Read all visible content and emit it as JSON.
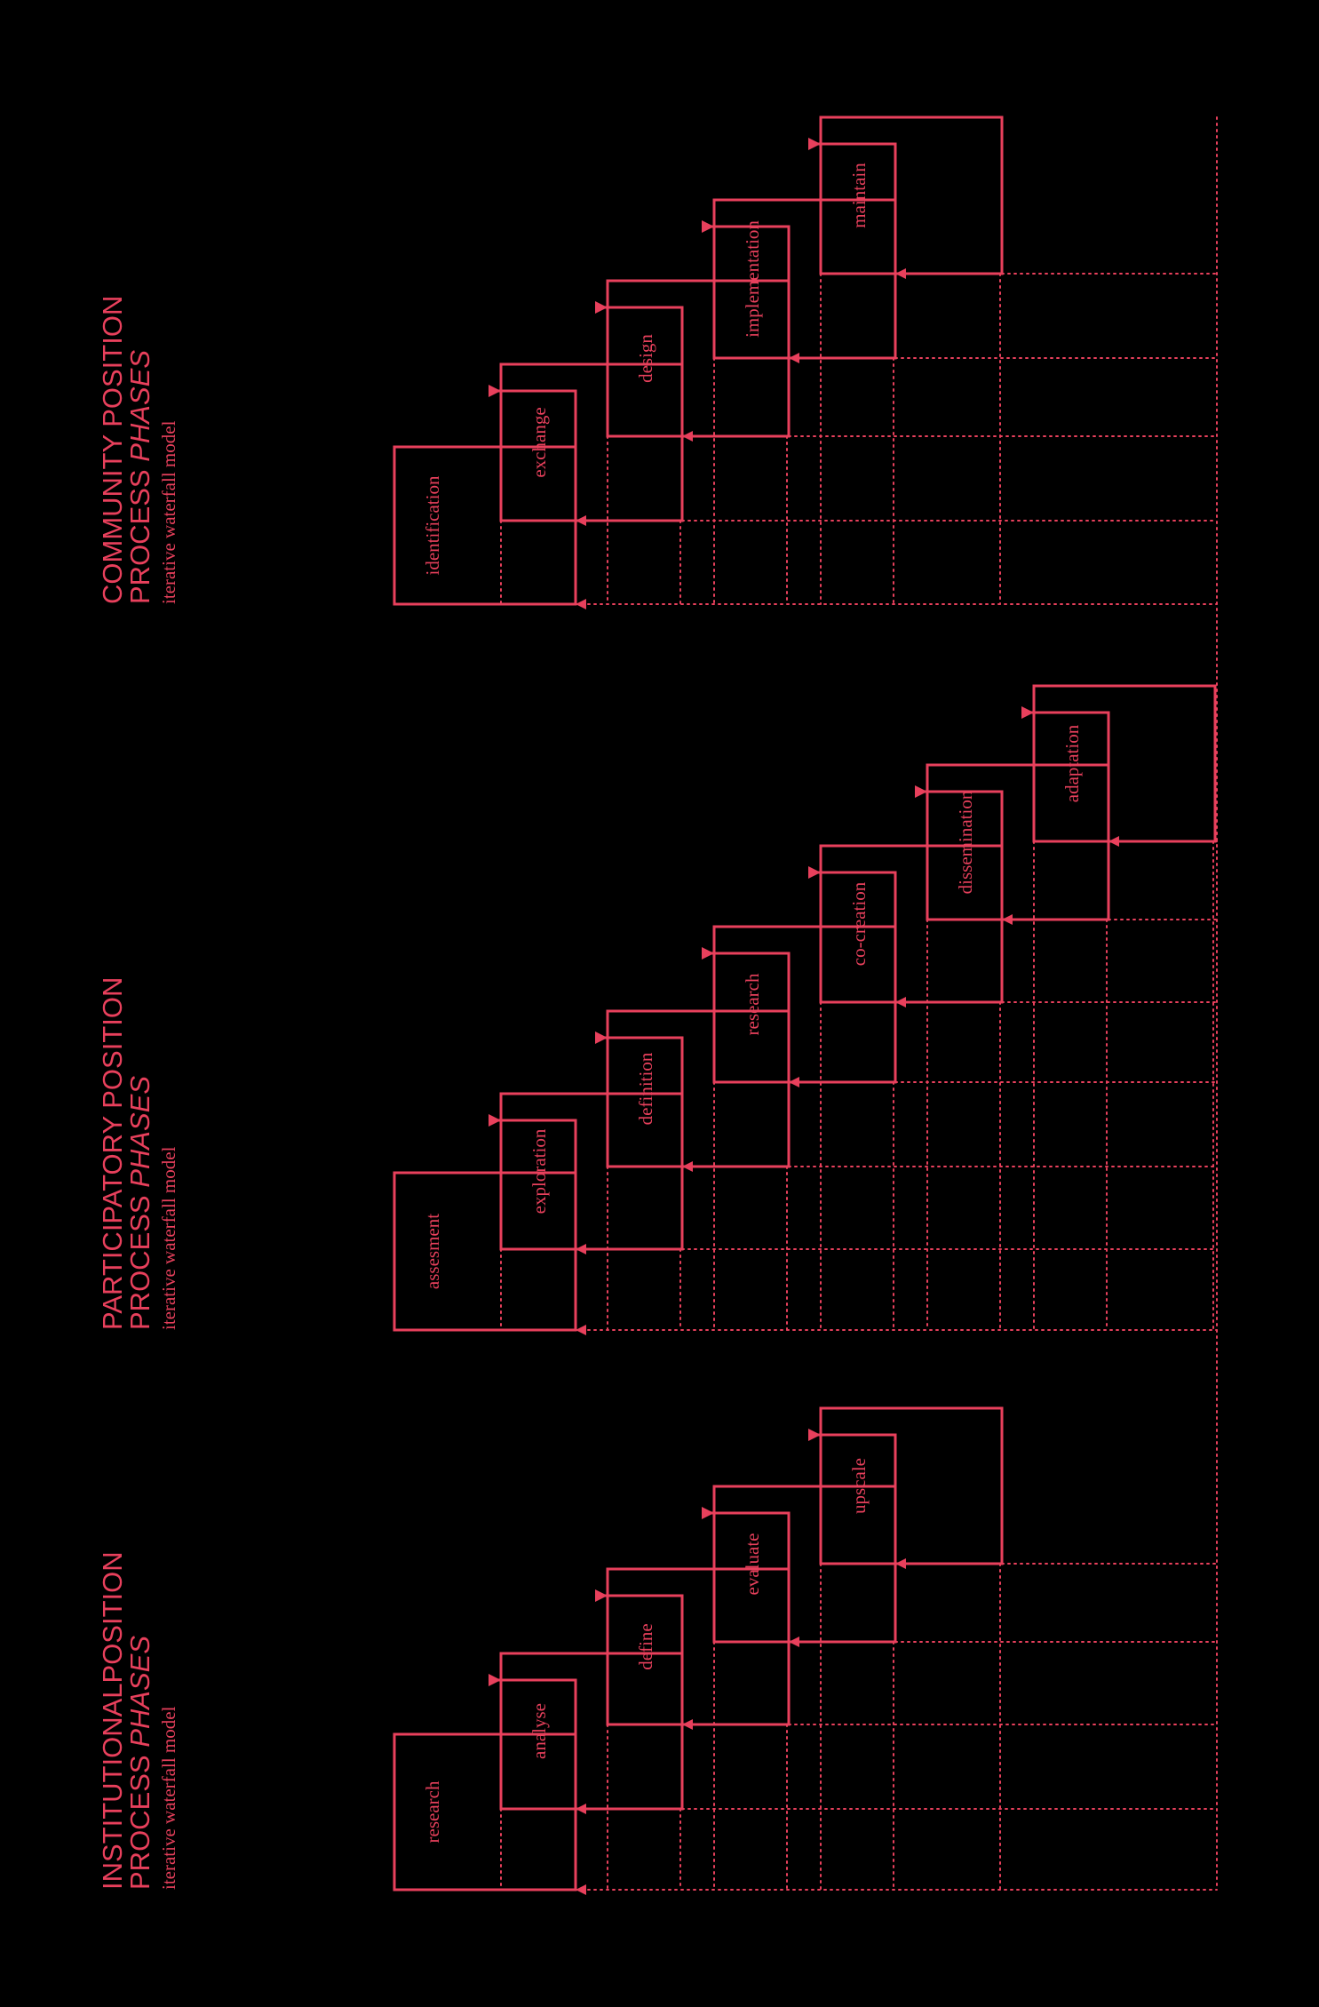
{
  "colors": {
    "accent": "#e8405c",
    "background": "#000000"
  },
  "sections": [
    {
      "title": "INSTITUTIONALPOSITION",
      "process_word": "PROCESS",
      "phases_word": "PHASES",
      "subtitle": "iterative waterfall model",
      "phases": [
        "research",
        "analyse",
        "define",
        "evaluate",
        "upscale"
      ]
    },
    {
      "title": "PARTICIPATORY POSITION",
      "process_word": "PROCESS",
      "phases_word": "PHASES",
      "subtitle": "iterative waterfall model",
      "phases": [
        "assesment",
        "exploration",
        "definition",
        "research",
        "co-creation",
        "dissemination",
        "adaptation"
      ]
    },
    {
      "title": "COMMUNITY POSITION",
      "process_word": "PROCESS",
      "phases_word": "PHASES",
      "subtitle": "iterative waterfall model",
      "phases": [
        "identification",
        "exchange",
        "design",
        "implementation",
        "maintain"
      ]
    }
  ]
}
